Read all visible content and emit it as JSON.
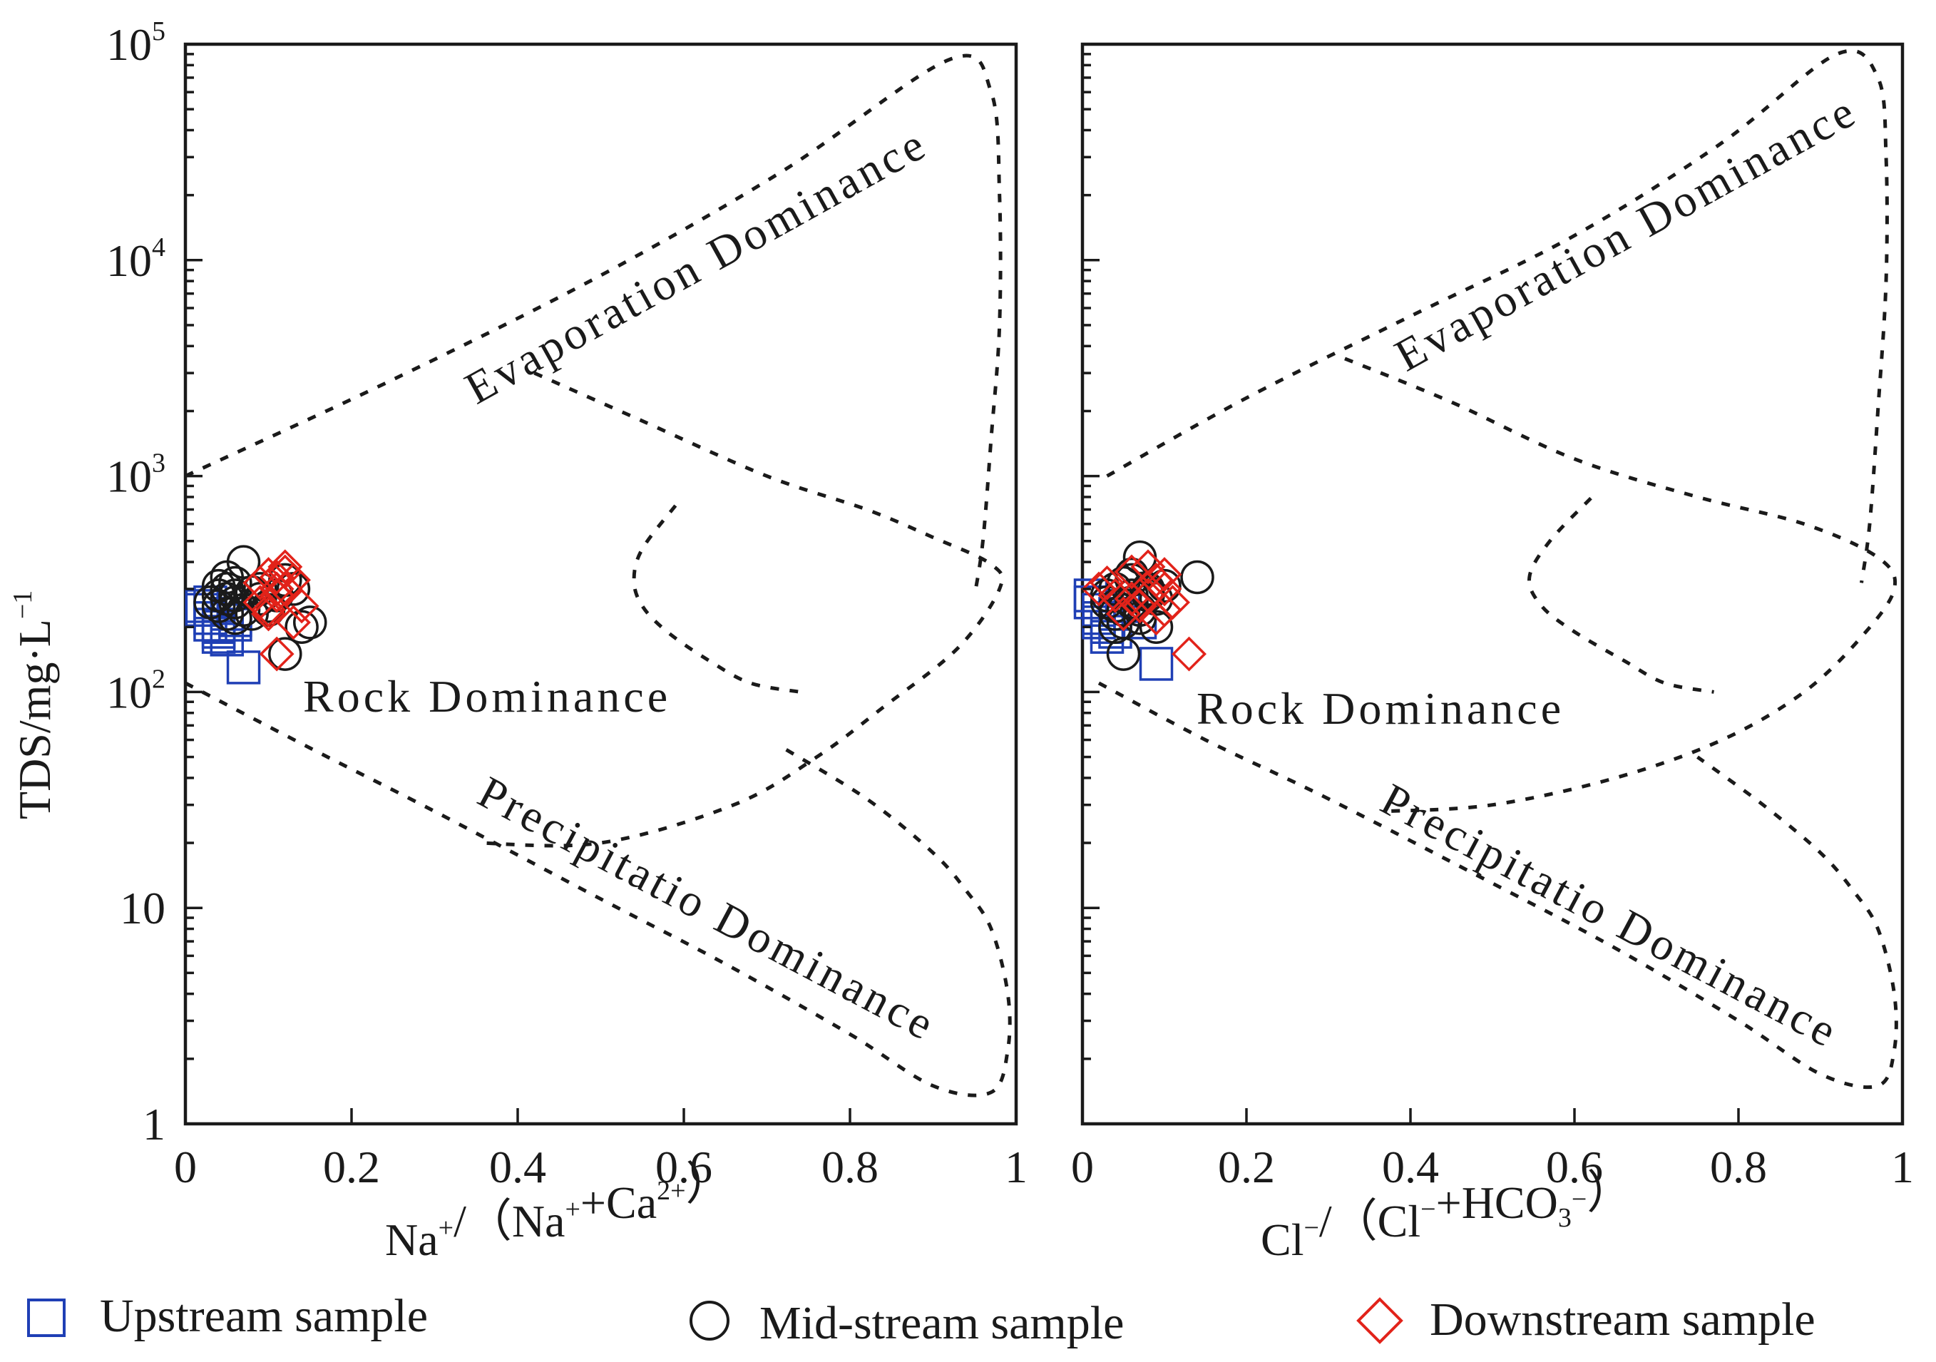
{
  "chart_data": [
    {
      "type": "scatter",
      "panel": "left",
      "xlabel": "Na⁺/（Na⁺+Ca²⁺）",
      "xlabel_parts": [
        {
          "t": "Na",
          "s": ""
        },
        {
          "t": "",
          "s": "+"
        },
        {
          "t": "/（Na",
          "s": ""
        },
        {
          "t": "",
          "s": "+"
        },
        {
          "t": "+Ca",
          "s": ""
        },
        {
          "t": "",
          "s": "2+"
        },
        {
          "t": "）",
          "s": ""
        }
      ],
      "ylabel": "TDS/mg·L⁻¹",
      "xlim": [
        0,
        1
      ],
      "ylim": [
        1,
        100000
      ],
      "yscale": "log",
      "x_ticks": [
        {
          "v": 0,
          "label": "0"
        },
        {
          "v": 0.2,
          "label": "0.2"
        },
        {
          "v": 0.4,
          "label": "0.4"
        },
        {
          "v": 0.6,
          "label": "0.6"
        },
        {
          "v": 0.8,
          "label": "0.8"
        },
        {
          "v": 1,
          "label": "1"
        }
      ],
      "y_ticks": [
        {
          "v": 1,
          "label": "1",
          "sup": ""
        },
        {
          "v": 10,
          "label": "10",
          "sup": ""
        },
        {
          "v": 100,
          "label": "10",
          "sup": "2"
        },
        {
          "v": 1000,
          "label": "10",
          "sup": "3"
        },
        {
          "v": 10000,
          "label": "10",
          "sup": "4"
        },
        {
          "v": 100000,
          "label": "10",
          "sup": "5"
        }
      ],
      "boundaries": [
        {
          "name": "upper-boundary",
          "points": [
            [
              0,
              1000
            ],
            [
              0.25,
              2800
            ],
            [
              0.5,
              8500
            ],
            [
              0.72,
              26000
            ],
            [
              0.92,
              85000
            ],
            [
              0.97,
              60000
            ],
            [
              0.98,
              20000
            ],
            [
              0.98,
              5000
            ],
            [
              0.97,
              1500
            ],
            [
              0.96,
              500
            ],
            [
              0.95,
              280
            ]
          ]
        },
        {
          "name": "inner-boundary",
          "points": [
            [
              0.42,
              3000
            ],
            [
              0.55,
              1800
            ],
            [
              0.7,
              1000
            ],
            [
              0.82,
              700
            ],
            [
              0.9,
              520
            ],
            [
              0.97,
              390
            ],
            [
              0.98,
              300
            ],
            [
              0.93,
              160
            ],
            [
              0.84,
              85
            ],
            [
              0.76,
              50
            ],
            [
              0.66,
              30
            ],
            [
              0.5,
              20
            ],
            [
              0.35,
              20
            ]
          ]
        },
        {
          "name": "left-bulge",
          "points": [
            [
              0.59,
              730
            ],
            [
              0.55,
              460
            ],
            [
              0.54,
              330
            ],
            [
              0.55,
              250
            ],
            [
              0.58,
              190
            ],
            [
              0.63,
              140
            ],
            [
              0.68,
              110
            ],
            [
              0.74,
              100
            ]
          ]
        },
        {
          "name": "lower-boundary",
          "points": [
            [
              0,
              110
            ],
            [
              0.15,
              55
            ],
            [
              0.3,
              28
            ],
            [
              0.5,
              11
            ],
            [
              0.65,
              5.5
            ],
            [
              0.8,
              2.6
            ],
            [
              0.9,
              1.5
            ],
            [
              0.97,
              1.4
            ],
            [
              0.99,
              2.2
            ],
            [
              0.99,
              4
            ],
            [
              0.97,
              8
            ],
            [
              0.94,
              12
            ],
            [
              0.9,
              18
            ],
            [
              0.82,
              32
            ],
            [
              0.72,
              55
            ]
          ]
        }
      ],
      "series": [
        {
          "name": "Upstream sample",
          "marker": "square",
          "color": "#1f3fb5",
          "x": [
            0.02,
            0.03,
            0.03,
            0.04,
            0.04,
            0.05,
            0.05,
            0.06,
            0.03,
            0.02,
            0.04,
            0.06,
            0.07
          ],
          "y": [
            240,
            220,
            205,
            200,
            180,
            175,
            230,
            215,
            260,
            250,
            190,
            205,
            130
          ]
        },
        {
          "name": "Mid-stream sample",
          "marker": "circle",
          "color": "#1a1a1a",
          "x": [
            0.04,
            0.05,
            0.06,
            0.05,
            0.07,
            0.04,
            0.06,
            0.08,
            0.09,
            0.05,
            0.03,
            0.07,
            0.06,
            0.04,
            0.1,
            0.12,
            0.13,
            0.11,
            0.15,
            0.14,
            0.12,
            0.1,
            0.08,
            0.06,
            0.05,
            0.09
          ],
          "y": [
            280,
            300,
            260,
            340,
            400,
            250,
            320,
            290,
            270,
            230,
            260,
            240,
            220,
            310,
            240,
            330,
            300,
            280,
            210,
            200,
            150,
            250,
            230,
            280,
            270,
            300
          ]
        },
        {
          "name": "Downstream sample",
          "marker": "diamond",
          "color": "#e2231a",
          "x": [
            0.09,
            0.1,
            0.11,
            0.12,
            0.13,
            0.12,
            0.11,
            0.14,
            0.1,
            0.11,
            0.13,
            0.09,
            0.12,
            0.1,
            0.11
          ],
          "y": [
            320,
            350,
            340,
            380,
            330,
            300,
            280,
            250,
            240,
            150,
            210,
            260,
            360,
            230,
            300
          ]
        }
      ]
    },
    {
      "type": "scatter",
      "panel": "right",
      "xlabel": "Cl⁻/（Cl⁻+HCO₃⁻）",
      "xlabel_parts": [
        {
          "t": "Cl",
          "s": ""
        },
        {
          "t": "",
          "s": "−"
        },
        {
          "t": "/（Cl",
          "s": ""
        },
        {
          "t": "",
          "s": "−"
        },
        {
          "t": "+HCO",
          "s": ""
        },
        {
          "t": "",
          "b": "3"
        },
        {
          "t": "",
          "s": "−"
        },
        {
          "t": "）",
          "s": ""
        }
      ],
      "xlim": [
        0,
        1
      ],
      "ylim": [
        1,
        100000
      ],
      "yscale": "log",
      "x_ticks": [
        {
          "v": 0,
          "label": "0"
        },
        {
          "v": 0.2,
          "label": "0.2"
        },
        {
          "v": 0.4,
          "label": "0.4"
        },
        {
          "v": 0.6,
          "label": "0.6"
        },
        {
          "v": 0.8,
          "label": "0.8"
        },
        {
          "v": 1,
          "label": "1"
        }
      ],
      "boundaries": [
        {
          "name": "upper-boundary",
          "points": [
            [
              0.03,
              1000
            ],
            [
              0.2,
              2300
            ],
            [
              0.4,
              5500
            ],
            [
              0.6,
              13000
            ],
            [
              0.78,
              35000
            ],
            [
              0.92,
              90000
            ],
            [
              0.97,
              70000
            ],
            [
              0.98,
              30000
            ],
            [
              0.98,
              8000
            ],
            [
              0.97,
              2000
            ],
            [
              0.96,
              600
            ],
            [
              0.95,
              320
            ]
          ]
        },
        {
          "name": "inner-boundary",
          "points": [
            [
              0.32,
              3500
            ],
            [
              0.45,
              2200
            ],
            [
              0.6,
              1200
            ],
            [
              0.75,
              800
            ],
            [
              0.88,
              600
            ],
            [
              0.97,
              420
            ],
            [
              0.99,
              300
            ],
            [
              0.95,
              180
            ],
            [
              0.88,
              100
            ],
            [
              0.78,
              60
            ],
            [
              0.65,
              40
            ],
            [
              0.5,
              30
            ],
            [
              0.37,
              28
            ]
          ]
        },
        {
          "name": "left-bulge",
          "points": [
            [
              0.62,
              790
            ],
            [
              0.57,
              500
            ],
            [
              0.545,
              340
            ],
            [
              0.56,
              250
            ],
            [
              0.6,
              190
            ],
            [
              0.66,
              140
            ],
            [
              0.71,
              110
            ],
            [
              0.77,
              100
            ]
          ]
        },
        {
          "name": "lower-boundary",
          "points": [
            [
              0.02,
              110
            ],
            [
              0.15,
              60
            ],
            [
              0.3,
              32
            ],
            [
              0.5,
              13
            ],
            [
              0.65,
              6.5
            ],
            [
              0.8,
              3
            ],
            [
              0.9,
              1.7
            ],
            [
              0.97,
              1.5
            ],
            [
              0.99,
              2.2
            ],
            [
              0.99,
              4
            ],
            [
              0.97,
              8
            ],
            [
              0.94,
              12
            ],
            [
              0.9,
              18
            ],
            [
              0.83,
              30
            ],
            [
              0.75,
              50
            ]
          ]
        }
      ],
      "series": [
        {
          "name": "Upstream sample",
          "marker": "square",
          "color": "#1f3fb5",
          "x": [
            0.01,
            0.02,
            0.02,
            0.03,
            0.03,
            0.04,
            0.02,
            0.05,
            0.07,
            0.04,
            0.01,
            0.09
          ],
          "y": [
            260,
            240,
            220,
            200,
            180,
            230,
            210,
            250,
            210,
            190,
            280,
            135
          ]
        },
        {
          "name": "Mid-stream sample",
          "marker": "circle",
          "color": "#1a1a1a",
          "x": [
            0.03,
            0.04,
            0.05,
            0.06,
            0.07,
            0.08,
            0.05,
            0.04,
            0.06,
            0.08,
            0.09,
            0.07,
            0.05,
            0.04,
            0.06,
            0.08,
            0.1,
            0.07,
            0.05,
            0.03,
            0.14,
            0.06,
            0.09,
            0.04
          ],
          "y": [
            280,
            300,
            320,
            260,
            420,
            280,
            240,
            200,
            330,
            300,
            270,
            220,
            210,
            250,
            350,
            290,
            310,
            240,
            150,
            260,
            340,
            280,
            200,
            230
          ]
        },
        {
          "name": "Downstream sample",
          "marker": "diamond",
          "color": "#e2231a",
          "x": [
            0.02,
            0.03,
            0.04,
            0.06,
            0.08,
            0.09,
            0.1,
            0.11,
            0.1,
            0.09,
            0.07,
            0.05,
            0.08,
            0.13,
            0.1,
            0.06
          ],
          "y": [
            300,
            320,
            280,
            360,
            380,
            330,
            350,
            260,
            300,
            220,
            250,
            230,
            280,
            150,
            240,
            270
          ]
        }
      ]
    }
  ],
  "region_labels": {
    "evaporation": "Evaporation Dominance",
    "rock": "Rock Dominance",
    "precipitation": "Precipitatio Dominance"
  },
  "legend": [
    {
      "label": "Upstream sample",
      "marker": "square",
      "color": "#1f3fb5"
    },
    {
      "label": "Mid-stream sample",
      "marker": "circle",
      "color": "#1a1a1a"
    },
    {
      "label": "Downstream sample",
      "marker": "diamond",
      "color": "#e2231a"
    }
  ]
}
